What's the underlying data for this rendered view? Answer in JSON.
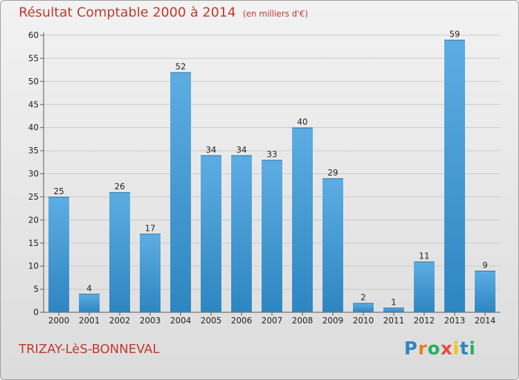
{
  "chart_data": {
    "type": "bar",
    "title": "Résultat Comptable 2000 à 2014",
    "subtitle": "(en milliers d'€)",
    "categories": [
      "2000",
      "2001",
      "2002",
      "2003",
      "2004",
      "2005",
      "2006",
      "2007",
      "2008",
      "2009",
      "2010",
      "2011",
      "2012",
      "2013",
      "2014"
    ],
    "values": [
      25,
      4,
      26,
      17,
      52,
      34,
      34,
      33,
      40,
      29,
      2,
      1,
      11,
      59,
      9
    ],
    "ylim": [
      0,
      60
    ],
    "yticks": [
      0,
      5,
      10,
      15,
      20,
      25,
      30,
      35,
      40,
      45,
      50,
      55,
      60
    ],
    "xlabel": "",
    "ylabel": "",
    "grid": true,
    "bar_color_top": "#5dade2",
    "bar_color_bottom": "#2e86c1"
  },
  "footer": {
    "commune": "TRIZAY-LèS-BONNEVAL",
    "logo_letters": [
      {
        "ch": "P",
        "color": "#2e86c1"
      },
      {
        "ch": "r",
        "color": "#e67e22"
      },
      {
        "ch": "o",
        "color": "#27ae60"
      },
      {
        "ch": "x",
        "color": "#e74c3c"
      },
      {
        "ch": "i",
        "color": "#f1c40f"
      },
      {
        "ch": "t",
        "color": "#2e86c1"
      },
      {
        "ch": "i",
        "color": "#27ae60"
      }
    ]
  }
}
